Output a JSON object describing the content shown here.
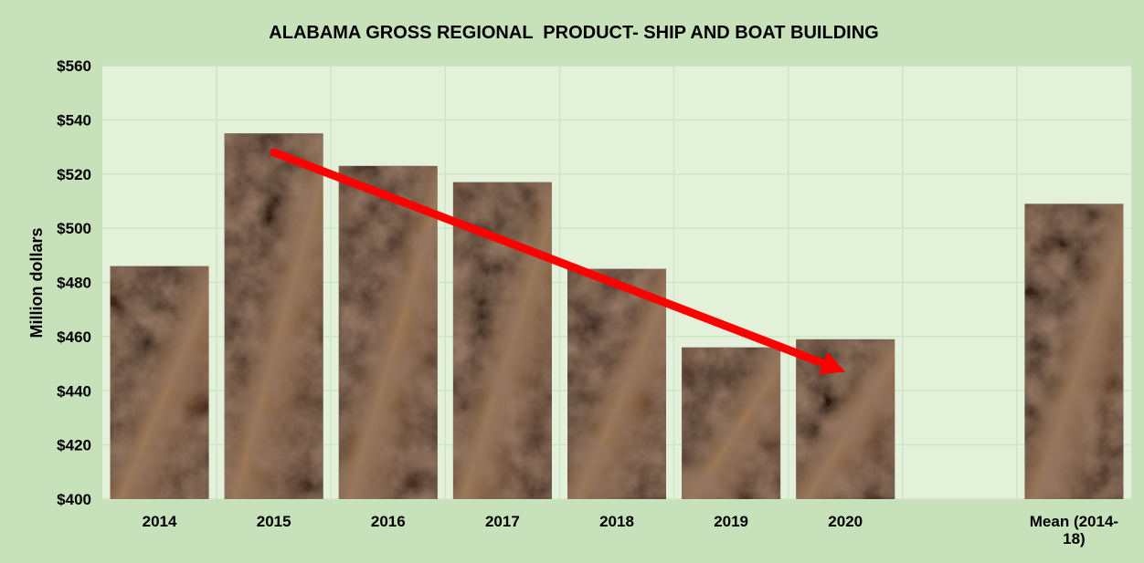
{
  "chart_data": {
    "type": "bar",
    "title": "ALABAMA GROSS REGIONAL  PRODUCT- SHIP AND BOAT BUILDING",
    "xlabel": "",
    "ylabel": "Million dollars",
    "ylim": [
      400,
      560
    ],
    "yticks": [
      400,
      420,
      440,
      460,
      480,
      500,
      520,
      540,
      560
    ],
    "ytick_prefix": "$",
    "categories": [
      "2014",
      "2015",
      "2016",
      "2017",
      "2018",
      "2019",
      "2020",
      "",
      "Mean (2014-18)"
    ],
    "category_label_lines": [
      [
        "2014"
      ],
      [
        "2015"
      ],
      [
        "2016"
      ],
      [
        "2017"
      ],
      [
        "2018"
      ],
      [
        "2019"
      ],
      [
        "2020"
      ],
      [
        ""
      ],
      [
        "Mean (2014-",
        "18)"
      ]
    ],
    "values": [
      486,
      535,
      523,
      517,
      485,
      456,
      459,
      null,
      509
    ],
    "grid": true,
    "legend": "none",
    "trend_arrow": {
      "from": [
        "2015",
        528
      ],
      "to": [
        "2020",
        447
      ],
      "color": "#ff0000"
    },
    "colors": {
      "background": "#c7e2bb",
      "plot_area": "#e3f1da",
      "gridline": "#cfe3c5",
      "bar_base": "#4a2e1e",
      "bar_highlight": "#a07a54",
      "bar_dark": "#24150d",
      "arrow": "#ff0000",
      "text": "#000000"
    }
  }
}
